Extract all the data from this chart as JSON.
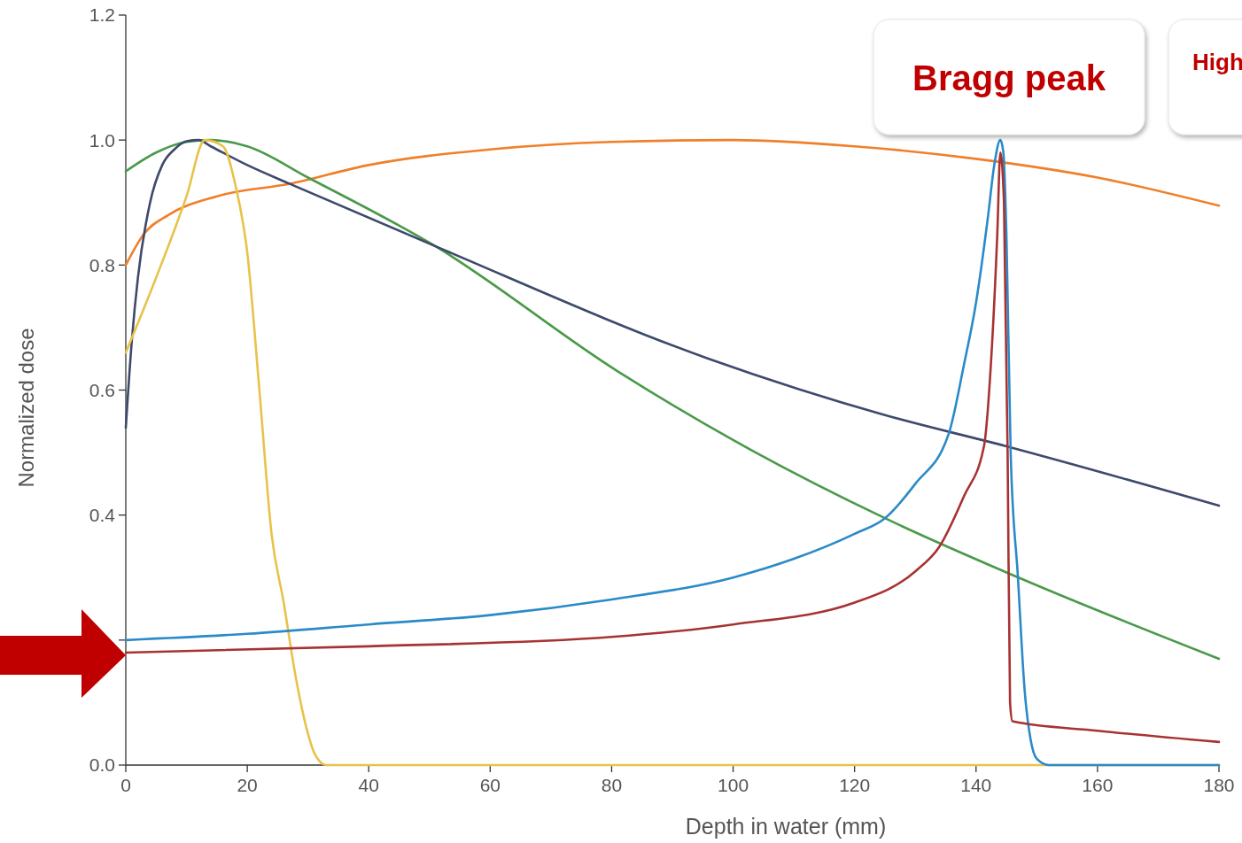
{
  "chart_data": {
    "type": "line",
    "xlabel": "Depth in water (mm)",
    "ylabel": "Normalized dose",
    "xlim": [
      0,
      180
    ],
    "xticks": [
      0,
      20,
      40,
      60,
      80,
      100,
      120,
      140,
      160,
      180
    ],
    "ylim": [
      0,
      1.2
    ],
    "yticks": [
      {
        "value": 0,
        "label": "0.0"
      },
      {
        "value": 0.2,
        "label": null
      },
      {
        "value": 0.4,
        "label": "0.4"
      },
      {
        "value": 0.6,
        "label": "0.6"
      },
      {
        "value": 0.8,
        "label": "0.8"
      },
      {
        "value": 1,
        "label": "1.0"
      },
      {
        "value": 1.2,
        "label": "1.2"
      }
    ],
    "grid": false,
    "line_style": "solid",
    "marker": "none",
    "annotations": [
      "Bragg peak",
      "High"
    ],
    "series": [
      {
        "color": "#f07f2a",
        "x": [
          0,
          3,
          7,
          15,
          27,
          40,
          60,
          80,
          100,
          120,
          140,
          160,
          180
        ],
        "values": [
          0.8,
          0.85,
          0.88,
          0.91,
          0.93,
          0.96,
          0.985,
          0.997,
          1.0,
          0.99,
          0.97,
          0.94,
          0.895
        ]
      },
      {
        "color": "#4a9a4a",
        "x": [
          0,
          5,
          10,
          14,
          20,
          30,
          51,
          81,
          100,
          125,
          147,
          180
        ],
        "values": [
          0.95,
          0.98,
          0.997,
          1.0,
          0.99,
          0.94,
          0.83,
          0.63,
          0.52,
          0.395,
          0.3,
          0.17
        ]
      },
      {
        "color": "#3d4a6b",
        "x": [
          0,
          1,
          2,
          4,
          6,
          8,
          10,
          12,
          14,
          20,
          27,
          51,
          96,
          125,
          145,
          180
        ],
        "values": [
          0.54,
          0.68,
          0.78,
          0.9,
          0.96,
          0.985,
          0.998,
          1.0,
          0.99,
          0.96,
          0.93,
          0.83,
          0.65,
          0.56,
          0.51,
          0.415
        ]
      },
      {
        "color": "#e8c24a",
        "x": [
          0,
          5,
          10,
          13,
          16,
          18,
          20,
          22,
          24,
          26,
          28,
          30,
          31,
          33,
          180
        ],
        "values": [
          0.66,
          0.78,
          0.91,
          1.0,
          0.99,
          0.93,
          0.82,
          0.6,
          0.37,
          0.26,
          0.14,
          0.05,
          0.02,
          0,
          0
        ]
      },
      {
        "color": "#2a8ac8",
        "x": [
          0,
          20,
          40,
          60,
          80,
          100,
          110,
          120,
          125,
          130,
          135.5,
          138,
          140,
          142,
          143,
          144,
          144.5,
          145,
          145.7,
          146.9,
          148,
          149,
          150,
          152,
          180
        ],
        "values": [
          0.2,
          0.21,
          0.225,
          0.24,
          0.265,
          0.3,
          0.33,
          0.37,
          0.395,
          0.45,
          0.53,
          0.64,
          0.74,
          0.88,
          0.96,
          1.0,
          0.98,
          0.85,
          0.5,
          0.3,
          0.12,
          0.04,
          0.01,
          0,
          0
        ]
      },
      {
        "color": "#a83232",
        "x": [
          0,
          40,
          80,
          100,
          120,
          130,
          134,
          138,
          141.3,
          142.5,
          143.5,
          144,
          144.6,
          145.2,
          145.6,
          146,
          160,
          180
        ],
        "values": [
          0.18,
          0.19,
          0.205,
          0.225,
          0.26,
          0.31,
          0.35,
          0.43,
          0.51,
          0.65,
          0.85,
          0.98,
          0.9,
          0.5,
          0.1,
          0.07,
          0.055,
          0.037
        ]
      }
    ]
  }
}
